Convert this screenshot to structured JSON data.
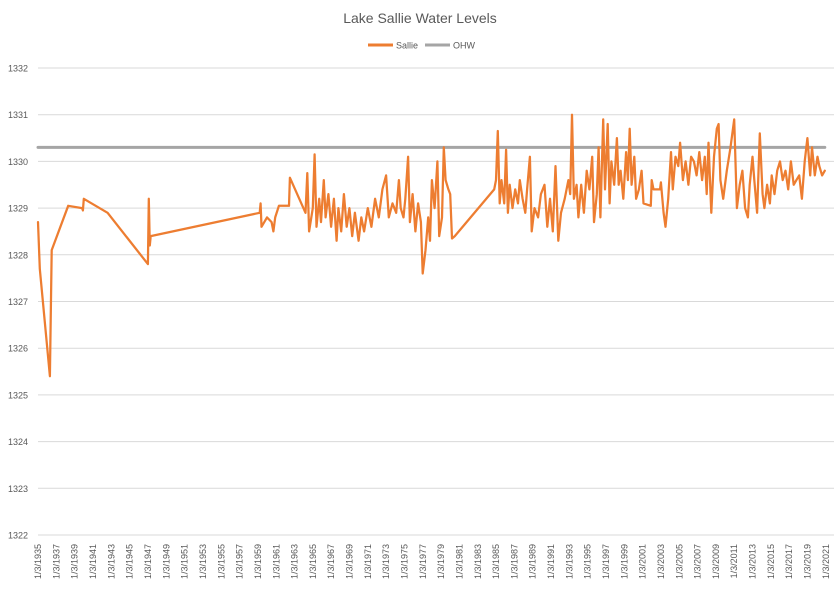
{
  "chart_data": {
    "type": "line",
    "title": "Lake Sallie Water Levels",
    "xlabel": "",
    "ylabel": "",
    "ylim": [
      1322,
      1332
    ],
    "ytick_step": 1,
    "grid": true,
    "legend_position": "top",
    "x_tick_labels": [
      "1/3/1935",
      "1/3/1937",
      "1/3/1939",
      "1/3/1941",
      "1/3/1943",
      "1/3/1945",
      "1/3/1947",
      "1/3/1949",
      "1/3/1951",
      "1/3/1953",
      "1/3/1955",
      "1/3/1957",
      "1/3/1959",
      "1/3/1961",
      "1/3/1963",
      "1/3/1965",
      "1/3/1967",
      "1/3/1969",
      "1/3/1971",
      "1/3/1973",
      "1/3/1975",
      "1/3/1977",
      "1/3/1979",
      "1/3/1981",
      "1/3/1983",
      "1/3/1985",
      "1/3/1987",
      "1/3/1989",
      "1/3/1991",
      "1/3/1993",
      "1/3/1995",
      "1/3/1997",
      "1/3/1999",
      "1/3/2001",
      "1/3/2003",
      "1/3/2005",
      "1/3/2007",
      "1/3/2009",
      "1/3/2011",
      "1/3/2013",
      "1/3/2015",
      "1/3/2017",
      "1/3/2019",
      "1/3/2021"
    ],
    "series": [
      {
        "name": "Sallie",
        "color": "#ED7D31",
        "points": [
          [
            1935.0,
            1328.7
          ],
          [
            1935.2,
            1327.7
          ],
          [
            1936.3,
            1325.4
          ],
          [
            1936.5,
            1328.1
          ],
          [
            1938.3,
            1329.05
          ],
          [
            1939.8,
            1329.0
          ],
          [
            1939.9,
            1328.95
          ],
          [
            1940.0,
            1329.2
          ],
          [
            1942.6,
            1328.9
          ],
          [
            1947.0,
            1327.8
          ],
          [
            1947.1,
            1329.2
          ],
          [
            1947.2,
            1328.2
          ],
          [
            1947.3,
            1328.4
          ],
          [
            1959.2,
            1328.9
          ],
          [
            1959.3,
            1329.1
          ],
          [
            1959.4,
            1328.6
          ],
          [
            1960.0,
            1328.8
          ],
          [
            1960.5,
            1328.7
          ],
          [
            1960.7,
            1328.5
          ],
          [
            1960.9,
            1328.8
          ],
          [
            1961.3,
            1329.05
          ],
          [
            1962.4,
            1329.05
          ],
          [
            1962.5,
            1329.65
          ],
          [
            1964.2,
            1328.9
          ],
          [
            1964.4,
            1329.75
          ],
          [
            1964.6,
            1328.5
          ],
          [
            1965.0,
            1329.0
          ],
          [
            1965.2,
            1330.15
          ],
          [
            1965.4,
            1328.6
          ],
          [
            1965.7,
            1329.2
          ],
          [
            1965.9,
            1328.7
          ],
          [
            1966.2,
            1329.6
          ],
          [
            1966.4,
            1328.8
          ],
          [
            1966.7,
            1329.3
          ],
          [
            1967.0,
            1328.6
          ],
          [
            1967.3,
            1329.2
          ],
          [
            1967.6,
            1328.3
          ],
          [
            1967.8,
            1329.0
          ],
          [
            1968.1,
            1328.5
          ],
          [
            1968.4,
            1329.3
          ],
          [
            1968.7,
            1328.6
          ],
          [
            1969.0,
            1329.0
          ],
          [
            1969.3,
            1328.4
          ],
          [
            1969.6,
            1328.9
          ],
          [
            1970.0,
            1328.3
          ],
          [
            1970.3,
            1328.8
          ],
          [
            1970.6,
            1328.5
          ],
          [
            1971.0,
            1329.0
          ],
          [
            1971.4,
            1328.6
          ],
          [
            1971.8,
            1329.2
          ],
          [
            1972.2,
            1328.8
          ],
          [
            1972.6,
            1329.4
          ],
          [
            1973.0,
            1329.7
          ],
          [
            1973.3,
            1328.8
          ],
          [
            1973.7,
            1329.1
          ],
          [
            1974.1,
            1328.9
          ],
          [
            1974.4,
            1329.6
          ],
          [
            1974.6,
            1329.0
          ],
          [
            1974.9,
            1328.8
          ],
          [
            1975.1,
            1329.2
          ],
          [
            1975.4,
            1330.1
          ],
          [
            1975.6,
            1328.7
          ],
          [
            1975.9,
            1329.3
          ],
          [
            1976.2,
            1328.5
          ],
          [
            1976.5,
            1329.1
          ],
          [
            1976.8,
            1328.7
          ],
          [
            1977.0,
            1327.6
          ],
          [
            1977.3,
            1328.1
          ],
          [
            1977.6,
            1328.8
          ],
          [
            1977.8,
            1328.3
          ],
          [
            1978.0,
            1329.6
          ],
          [
            1978.3,
            1329.0
          ],
          [
            1978.6,
            1330.0
          ],
          [
            1978.8,
            1328.4
          ],
          [
            1979.1,
            1328.8
          ],
          [
            1979.3,
            1330.3
          ],
          [
            1979.5,
            1329.6
          ],
          [
            1979.8,
            1329.4
          ],
          [
            1980.0,
            1329.3
          ],
          [
            1980.2,
            1328.35
          ],
          [
            1980.5,
            1328.4
          ],
          [
            1984.8,
            1329.4
          ],
          [
            1985.0,
            1329.6
          ],
          [
            1985.2,
            1330.65
          ],
          [
            1985.4,
            1329.1
          ],
          [
            1985.6,
            1329.6
          ],
          [
            1985.9,
            1329.1
          ],
          [
            1986.1,
            1330.25
          ],
          [
            1986.3,
            1328.9
          ],
          [
            1986.5,
            1329.5
          ],
          [
            1986.8,
            1329.0
          ],
          [
            1987.1,
            1329.4
          ],
          [
            1987.4,
            1329.1
          ],
          [
            1987.6,
            1329.6
          ],
          [
            1987.9,
            1329.2
          ],
          [
            1988.2,
            1328.9
          ],
          [
            1988.4,
            1329.4
          ],
          [
            1988.7,
            1330.1
          ],
          [
            1988.9,
            1328.5
          ],
          [
            1989.2,
            1329.0
          ],
          [
            1989.6,
            1328.8
          ],
          [
            1989.9,
            1329.3
          ],
          [
            1990.3,
            1329.5
          ],
          [
            1990.6,
            1328.6
          ],
          [
            1990.9,
            1329.2
          ],
          [
            1991.2,
            1328.5
          ],
          [
            1991.5,
            1329.9
          ],
          [
            1991.8,
            1328.3
          ],
          [
            1992.1,
            1328.9
          ],
          [
            1992.5,
            1329.2
          ],
          [
            1992.9,
            1329.6
          ],
          [
            1993.1,
            1329.3
          ],
          [
            1993.3,
            1331.0
          ],
          [
            1993.5,
            1329.2
          ],
          [
            1993.8,
            1329.5
          ],
          [
            1994.0,
            1328.8
          ],
          [
            1994.3,
            1329.5
          ],
          [
            1994.6,
            1328.9
          ],
          [
            1994.9,
            1329.8
          ],
          [
            1995.2,
            1329.4
          ],
          [
            1995.5,
            1330.1
          ],
          [
            1995.7,
            1328.7
          ],
          [
            1996.0,
            1329.3
          ],
          [
            1996.2,
            1330.3
          ],
          [
            1996.4,
            1328.8
          ],
          [
            1996.7,
            1330.9
          ],
          [
            1996.9,
            1329.4
          ],
          [
            1997.2,
            1330.8
          ],
          [
            1997.4,
            1329.1
          ],
          [
            1997.6,
            1330.0
          ],
          [
            1997.9,
            1329.5
          ],
          [
            1998.2,
            1330.5
          ],
          [
            1998.4,
            1329.5
          ],
          [
            1998.6,
            1329.8
          ],
          [
            1998.9,
            1329.2
          ],
          [
            1999.2,
            1330.2
          ],
          [
            1999.4,
            1329.6
          ],
          [
            1999.6,
            1330.7
          ],
          [
            1999.8,
            1329.5
          ],
          [
            2000.1,
            1330.1
          ],
          [
            2000.3,
            1329.2
          ],
          [
            2000.6,
            1329.4
          ],
          [
            2000.9,
            1329.8
          ],
          [
            2001.1,
            1329.1
          ],
          [
            2001.9,
            1329.05
          ],
          [
            2002.0,
            1329.6
          ],
          [
            2002.2,
            1329.4
          ],
          [
            2002.9,
            1329.4
          ],
          [
            2003.0,
            1329.55
          ],
          [
            2003.3,
            1328.9
          ],
          [
            2003.5,
            1328.6
          ],
          [
            2003.8,
            1329.2
          ],
          [
            2004.1,
            1330.2
          ],
          [
            2004.3,
            1329.4
          ],
          [
            2004.6,
            1330.1
          ],
          [
            2004.9,
            1329.9
          ],
          [
            2005.1,
            1330.4
          ],
          [
            2005.4,
            1329.6
          ],
          [
            2005.7,
            1330.0
          ],
          [
            2006.0,
            1329.5
          ],
          [
            2006.3,
            1330.1
          ],
          [
            2006.6,
            1330.0
          ],
          [
            2006.9,
            1329.7
          ],
          [
            2007.2,
            1330.2
          ],
          [
            2007.5,
            1329.6
          ],
          [
            2007.8,
            1330.1
          ],
          [
            2008.0,
            1329.3
          ],
          [
            2008.2,
            1330.4
          ],
          [
            2008.5,
            1328.9
          ],
          [
            2008.8,
            1330.1
          ],
          [
            2009.1,
            1330.7
          ],
          [
            2009.3,
            1330.8
          ],
          [
            2009.5,
            1329.6
          ],
          [
            2009.8,
            1329.2
          ],
          [
            2010.2,
            1329.8
          ],
          [
            2010.6,
            1330.3
          ],
          [
            2011.0,
            1330.9
          ],
          [
            2011.3,
            1329.0
          ],
          [
            2011.6,
            1329.5
          ],
          [
            2011.9,
            1329.8
          ],
          [
            2012.2,
            1329.0
          ],
          [
            2012.5,
            1328.8
          ],
          [
            2012.7,
            1329.5
          ],
          [
            2013.0,
            1330.1
          ],
          [
            2013.2,
            1329.6
          ],
          [
            2013.5,
            1328.9
          ],
          [
            2013.8,
            1330.6
          ],
          [
            2014.1,
            1329.3
          ],
          [
            2014.3,
            1329.0
          ],
          [
            2014.6,
            1329.5
          ],
          [
            2014.9,
            1329.1
          ],
          [
            2015.1,
            1329.7
          ],
          [
            2015.4,
            1329.3
          ],
          [
            2015.7,
            1329.8
          ],
          [
            2016.0,
            1330.0
          ],
          [
            2016.3,
            1329.6
          ],
          [
            2016.6,
            1329.8
          ],
          [
            2016.9,
            1329.4
          ],
          [
            2017.2,
            1330.0
          ],
          [
            2017.5,
            1329.5
          ],
          [
            2017.8,
            1329.6
          ],
          [
            2018.1,
            1329.7
          ],
          [
            2018.4,
            1329.2
          ],
          [
            2018.7,
            1330.0
          ],
          [
            2019.0,
            1330.5
          ],
          [
            2019.3,
            1329.7
          ],
          [
            2019.5,
            1330.3
          ],
          [
            2019.8,
            1329.7
          ],
          [
            2020.1,
            1330.1
          ],
          [
            2020.3,
            1329.9
          ],
          [
            2020.6,
            1329.7
          ],
          [
            2020.9,
            1329.8
          ]
        ]
      },
      {
        "name": "OHW",
        "color": "#A5A5A5",
        "points": [
          [
            1935.0,
            1330.3
          ],
          [
            2020.9,
            1330.3
          ]
        ]
      }
    ]
  }
}
